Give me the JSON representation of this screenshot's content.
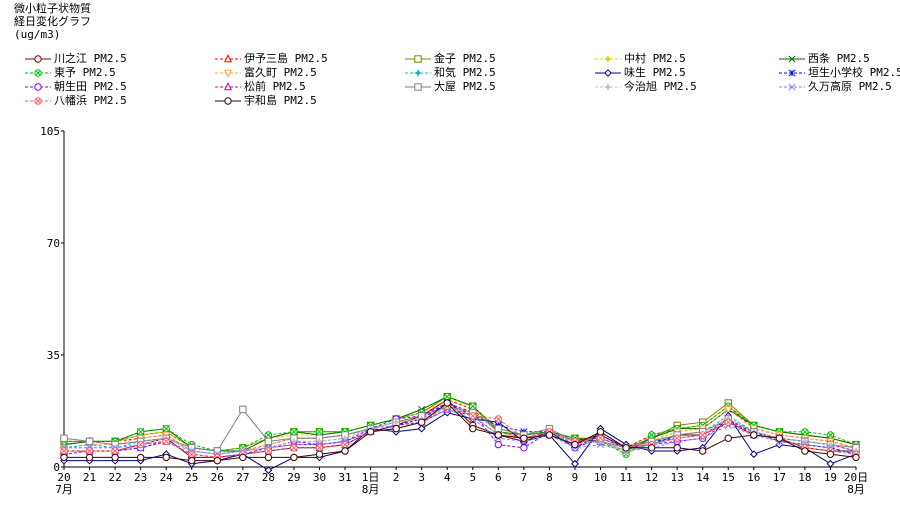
{
  "title_lines": [
    "微小粒子状物質",
    "経日変化グラフ",
    "(ug/m3)"
  ],
  "chart_data": {
    "type": "line",
    "ylim": [
      0,
      105
    ],
    "yticks": [
      0,
      35,
      70,
      105
    ],
    "x_tick_labels": [
      {
        "day": "20",
        "month": "7月"
      },
      {
        "day": "21"
      },
      {
        "day": "22"
      },
      {
        "day": "23"
      },
      {
        "day": "24"
      },
      {
        "day": "25"
      },
      {
        "day": "26"
      },
      {
        "day": "27"
      },
      {
        "day": "28"
      },
      {
        "day": "29"
      },
      {
        "day": "30"
      },
      {
        "day": "31"
      },
      {
        "day": "1日",
        "month": "8月"
      },
      {
        "day": "2"
      },
      {
        "day": "3"
      },
      {
        "day": "4"
      },
      {
        "day": "5"
      },
      {
        "day": "6"
      },
      {
        "day": "7"
      },
      {
        "day": "8"
      },
      {
        "day": "9"
      },
      {
        "day": "10"
      },
      {
        "day": "11"
      },
      {
        "day": "12"
      },
      {
        "day": "13"
      },
      {
        "day": "14"
      },
      {
        "day": "15"
      },
      {
        "day": "16"
      },
      {
        "day": "17"
      },
      {
        "day": "18"
      },
      {
        "day": "19"
      },
      {
        "day": "20日",
        "month": "8月"
      }
    ],
    "grid": false,
    "legend_position": "top",
    "series": [
      {
        "name": "川之江 PM2.5",
        "color": "#800000",
        "marker": "circle",
        "dash": "",
        "values": [
          5,
          5,
          5,
          7,
          9,
          3,
          3,
          4,
          5,
          6,
          6,
          7,
          11,
          13,
          16,
          21,
          13,
          10,
          8,
          11,
          8,
          10,
          6,
          7,
          10,
          10,
          14,
          10,
          9,
          6,
          5,
          5
        ]
      },
      {
        "name": "伊予三島 PM2.5",
        "color": "#ff0000",
        "marker": "triangle-up",
        "dash": "3,2",
        "values": [
          7,
          8,
          8,
          9,
          10,
          5,
          4,
          5,
          7,
          9,
          9,
          10,
          12,
          14,
          16,
          21,
          18,
          11,
          9,
          11,
          7,
          10,
          6,
          10,
          12,
          13,
          19,
          12,
          10,
          9,
          8,
          6
        ]
      },
      {
        "name": "金子 PM2.5",
        "color": "#808000",
        "marker": "square",
        "dash": "",
        "values": [
          8,
          8,
          8,
          10,
          11,
          6,
          5,
          6,
          9,
          11,
          11,
          11,
          13,
          15,
          17,
          22,
          19,
          12,
          10,
          11,
          9,
          9,
          6,
          9,
          13,
          14,
          20,
          13,
          11,
          10,
          9,
          7
        ]
      },
      {
        "name": "中村 PM2.5",
        "color": "#e0d000",
        "marker": "star",
        "dash": "3,2",
        "values": [
          7,
          8,
          8,
          10,
          11,
          6,
          5,
          6,
          9,
          10,
          10,
          11,
          13,
          15,
          17,
          21,
          19,
          12,
          10,
          11,
          8,
          8,
          4,
          8,
          12,
          13,
          19,
          13,
          11,
          10,
          9,
          7
        ]
      },
      {
        "name": "西条 PM2.5",
        "color": "#006400",
        "marker": "x",
        "dash": "",
        "values": [
          7,
          8,
          8,
          11,
          12,
          6,
          5,
          5,
          9,
          11,
          10,
          11,
          13,
          15,
          18,
          22,
          19,
          11,
          10,
          11,
          9,
          8,
          5,
          9,
          12,
          12,
          18,
          13,
          11,
          10,
          9,
          7
        ]
      },
      {
        "name": "東予 PM2.5",
        "color": "#00c000",
        "marker": "circle-x",
        "dash": "3,2",
        "values": [
          8,
          8,
          8,
          11,
          12,
          7,
          5,
          6,
          10,
          11,
          11,
          11,
          13,
          15,
          17,
          22,
          19,
          11,
          10,
          11,
          9,
          8,
          4,
          10,
          12,
          13,
          19,
          13,
          11,
          11,
          10,
          7
        ]
      },
      {
        "name": "富久町 PM2.5",
        "color": "#ffa040",
        "marker": "triangle-down",
        "dash": "3,2",
        "values": [
          6,
          7,
          7,
          9,
          10,
          5,
          4,
          5,
          7,
          9,
          9,
          10,
          12,
          14,
          15,
          20,
          17,
          11,
          9,
          10,
          8,
          8,
          5,
          8,
          11,
          12,
          18,
          12,
          10,
          9,
          8,
          6
        ]
      },
      {
        "name": "和気 PM2.5",
        "color": "#00c0c0",
        "marker": "star",
        "dash": "3,2",
        "values": [
          6,
          7,
          6,
          8,
          9,
          5,
          4,
          5,
          6,
          8,
          8,
          9,
          12,
          13,
          14,
          19,
          16,
          10,
          9,
          11,
          7,
          8,
          5,
          7,
          10,
          11,
          16,
          11,
          9,
          8,
          7,
          5
        ]
      },
      {
        "name": "味生 PM2.5",
        "color": "#000080",
        "marker": "diamond",
        "dash": "",
        "values": [
          2,
          2,
          2,
          2,
          4,
          1,
          2,
          4,
          -1,
          3,
          3,
          5,
          12,
          11,
          12,
          17,
          15,
          14,
          8,
          10,
          1,
          12,
          7,
          5,
          5,
          6,
          16,
          4,
          7,
          6,
          1,
          4
        ]
      },
      {
        "name": "垣生小学校 PM2.5",
        "color": "#0000ff",
        "marker": "asterisk",
        "dash": "3,2",
        "values": [
          5,
          5,
          5,
          6,
          8,
          4,
          3,
          4,
          5,
          6,
          6,
          7,
          11,
          13,
          15,
          20,
          16,
          13,
          11,
          11,
          6,
          10,
          6,
          8,
          9,
          10,
          15,
          11,
          8,
          7,
          6,
          4
        ]
      },
      {
        "name": "朝生田 PM2.5",
        "color": "#8000ff",
        "marker": "circle",
        "dash": "3,2",
        "values": [
          4,
          5,
          5,
          6,
          8,
          4,
          3,
          4,
          6,
          8,
          7,
          8,
          12,
          15,
          16,
          20,
          17,
          7,
          6,
          11,
          6,
          9,
          6,
          7,
          8,
          9,
          14,
          11,
          9,
          8,
          7,
          5
        ]
      },
      {
        "name": "松前 PM2.5",
        "color": "#c000c0",
        "marker": "triangle-up",
        "dash": "3,2",
        "values": [
          5,
          5,
          5,
          7,
          8,
          4,
          3,
          4,
          6,
          7,
          7,
          8,
          11,
          13,
          14,
          18,
          16,
          10,
          9,
          10,
          7,
          8,
          6,
          7,
          9,
          10,
          15,
          10,
          9,
          8,
          7,
          5
        ]
      },
      {
        "name": "大屋 PM2.5",
        "color": "#808080",
        "marker": "square",
        "dash": "",
        "values": [
          9,
          8,
          7,
          8,
          9,
          6,
          5,
          18,
          8,
          9,
          9,
          10,
          12,
          14,
          16,
          19,
          17,
          12,
          10,
          12,
          8,
          8,
          6,
          8,
          10,
          11,
          15,
          11,
          9,
          8,
          7,
          6
        ]
      },
      {
        "name": "今治旭 PM2.5",
        "color": "#c0c0c0",
        "marker": "star",
        "dash": "3,2",
        "values": [
          6,
          6,
          6,
          7,
          9,
          5,
          4,
          5,
          6,
          8,
          8,
          9,
          12,
          14,
          15,
          19,
          16,
          10,
          9,
          10,
          7,
          8,
          5,
          7,
          9,
          10,
          15,
          11,
          9,
          8,
          7,
          5
        ]
      },
      {
        "name": "久万高原 PM2.5",
        "color": "#8080ff",
        "marker": "x",
        "dash": "3,2",
        "values": [
          6,
          6,
          6,
          7,
          8,
          5,
          4,
          5,
          6,
          7,
          7,
          8,
          11,
          12,
          14,
          18,
          15,
          9,
          8,
          10,
          6,
          7,
          5,
          6,
          8,
          9,
          13,
          10,
          8,
          7,
          6,
          4
        ]
      },
      {
        "name": "八幡浜 PM2.5",
        "color": "#ff6060",
        "marker": "circle-x",
        "dash": "3,2",
        "values": [
          5,
          5,
          5,
          7,
          8,
          4,
          3,
          4,
          5,
          6,
          6,
          7,
          11,
          12,
          14,
          19,
          16,
          15,
          9,
          11,
          8,
          9,
          6,
          7,
          9,
          10,
          14,
          10,
          9,
          6,
          5,
          4
        ]
      },
      {
        "name": "宇和島 PM2.5",
        "color": "#400000",
        "marker": "circle",
        "dash": "",
        "values": [
          3,
          3,
          3,
          3,
          3,
          2,
          2,
          3,
          3,
          3,
          4,
          5,
          11,
          12,
          14,
          20,
          12,
          10,
          9,
          10,
          7,
          11,
          6,
          6,
          6,
          5,
          9,
          10,
          9,
          5,
          4,
          3
        ]
      }
    ]
  }
}
